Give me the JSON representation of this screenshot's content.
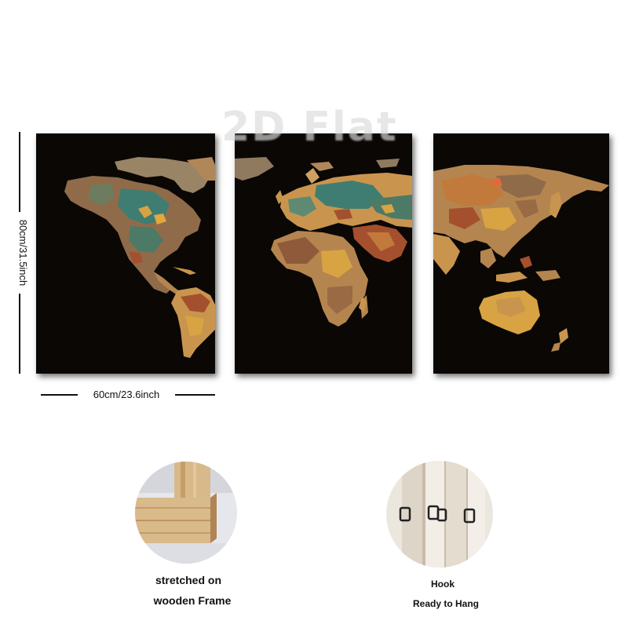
{
  "watermark": "2D Flat",
  "dimensions": {
    "height_label": "80cm/31.5inch",
    "width_label": "60cm/23.6inch"
  },
  "features": [
    {
      "caption_line1": "stretched on",
      "caption_line2": "wooden Frame"
    },
    {
      "caption_line1": "Hook",
      "caption_line2": "Ready to Hang"
    }
  ],
  "colors": {
    "canvas_background": "#0a0705",
    "map_tan": "#c9954e",
    "map_teal": "#3f7d72",
    "map_rust": "#a4502e",
    "map_ochre": "#d8a443"
  }
}
